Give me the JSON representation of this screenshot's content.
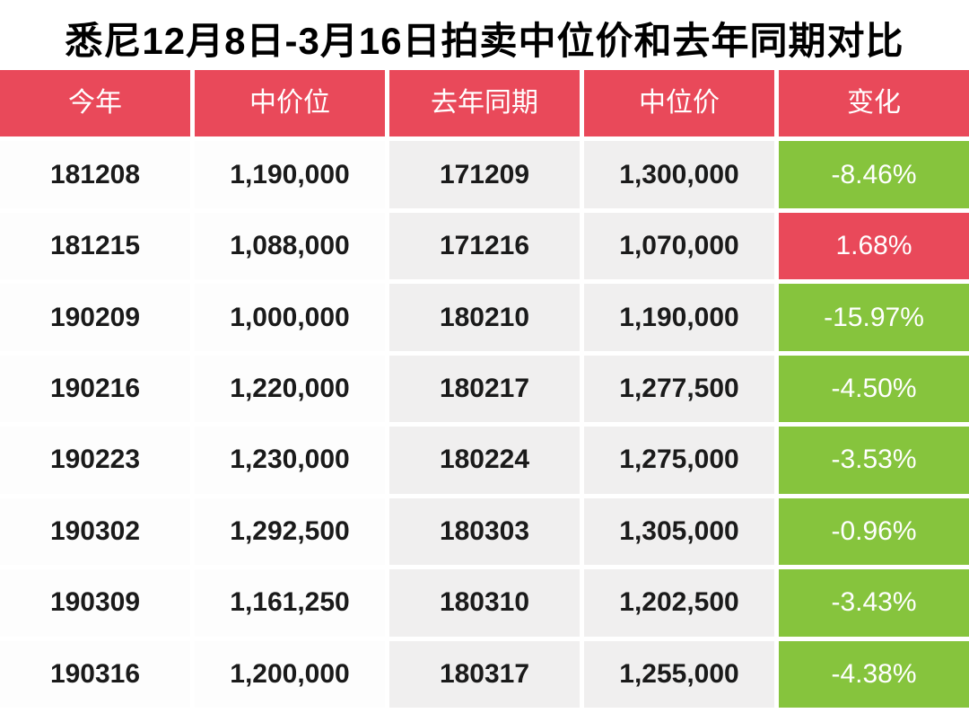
{
  "title": "悉尼12月8日-3月16日拍卖中位价和去年同期对比",
  "colors": {
    "header_bg": "#E9495A",
    "change_up_bg": "#E9495A",
    "change_down_bg": "#86C43D",
    "col_light_bg": "#FDFDFD",
    "col_gray_bg": "#F0EFEF",
    "gap_white": "#FFFFFF",
    "text_dark": "#1A1A1A",
    "text_light": "#FFFFFF"
  },
  "chart_data": {
    "type": "table",
    "title": "悉尼12月8日-3月16日拍卖中位价和去年同期对比",
    "columns": [
      "今年",
      "中价位",
      "去年同期",
      "中位价",
      "变化"
    ],
    "rows": [
      {
        "this_year_date": "181208",
        "this_year_median": "1,190,000",
        "last_year_date": "171209",
        "last_year_median": "1,300,000",
        "change": "-8.46%",
        "direction": "down"
      },
      {
        "this_year_date": "181215",
        "this_year_median": "1,088,000",
        "last_year_date": "171216",
        "last_year_median": "1,070,000",
        "change": "1.68%",
        "direction": "up"
      },
      {
        "this_year_date": "190209",
        "this_year_median": "1,000,000",
        "last_year_date": "180210",
        "last_year_median": "1,190,000",
        "change": "-15.97%",
        "direction": "down"
      },
      {
        "this_year_date": "190216",
        "this_year_median": "1,220,000",
        "last_year_date": "180217",
        "last_year_median": "1,277,500",
        "change": "-4.50%",
        "direction": "down"
      },
      {
        "this_year_date": "190223",
        "this_year_median": "1,230,000",
        "last_year_date": "180224",
        "last_year_median": "1,275,000",
        "change": "-3.53%",
        "direction": "down"
      },
      {
        "this_year_date": "190302",
        "this_year_median": "1,292,500",
        "last_year_date": "180303",
        "last_year_median": "1,305,000",
        "change": "-0.96%",
        "direction": "down"
      },
      {
        "this_year_date": "190309",
        "this_year_median": "1,161,250",
        "last_year_date": "180310",
        "last_year_median": "1,202,500",
        "change": "-3.43%",
        "direction": "down"
      },
      {
        "this_year_date": "190316",
        "this_year_median": "1,200,000",
        "last_year_date": "180317",
        "last_year_median": "1,255,000",
        "change": "-4.38%",
        "direction": "down"
      }
    ]
  }
}
